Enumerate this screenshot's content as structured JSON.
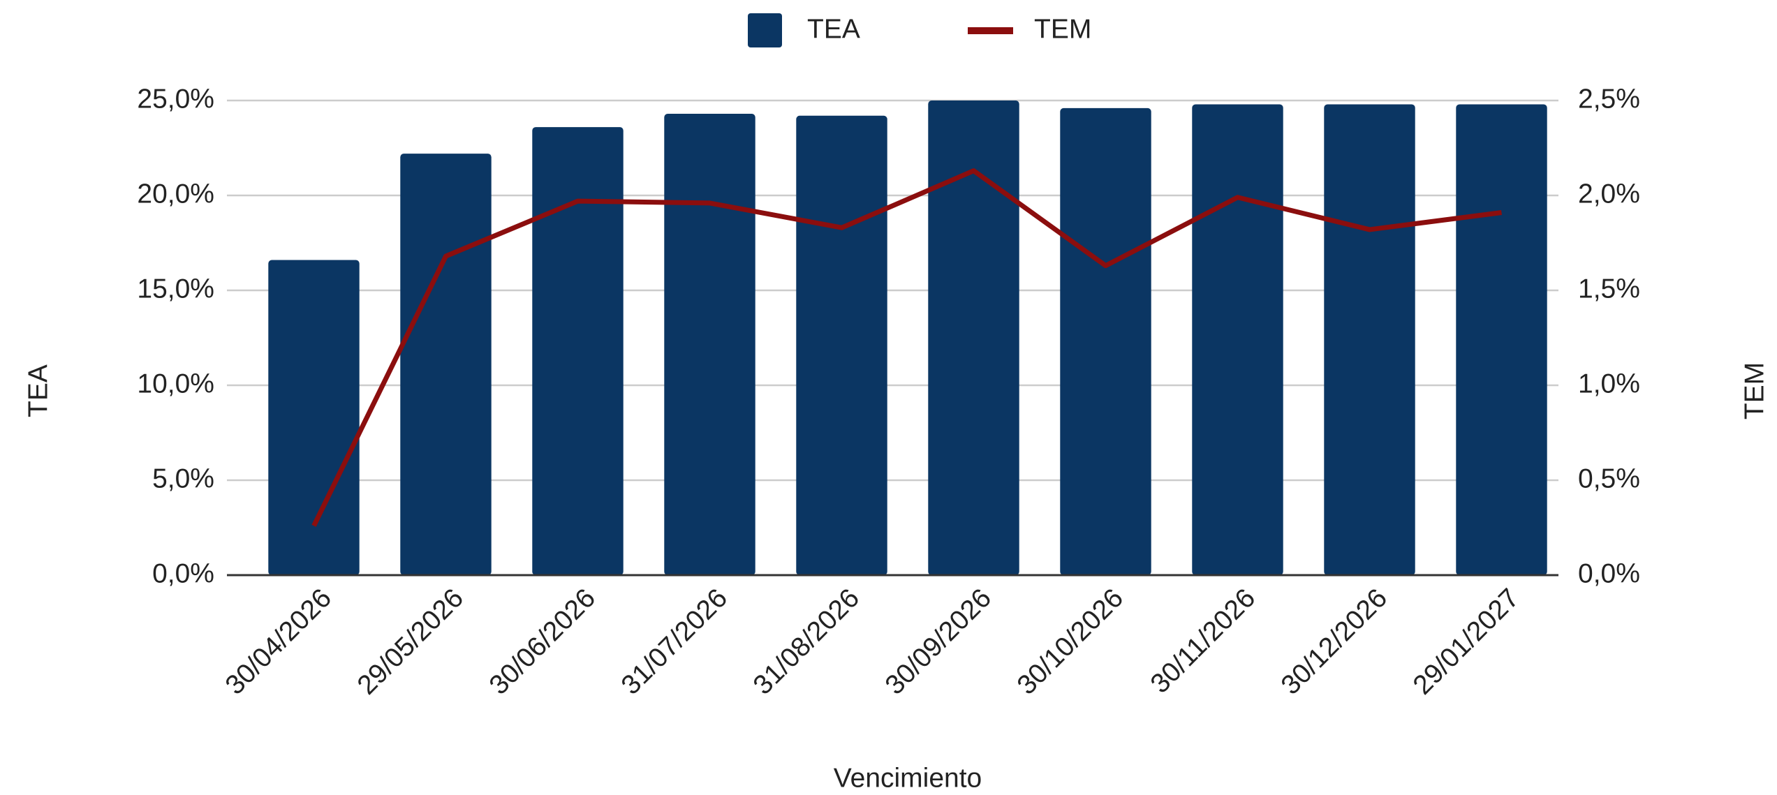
{
  "chart_data": {
    "type": "bar-line",
    "categories": [
      "30/04/2026",
      "29/05/2026",
      "30/06/2026",
      "31/07/2026",
      "31/08/2026",
      "30/09/2026",
      "30/10/2026",
      "30/11/2026",
      "30/12/2026",
      "29/01/2027"
    ],
    "series": [
      {
        "name": "TEA",
        "type": "bar",
        "color": "#0b3663",
        "values": [
          16.6,
          22.2,
          23.6,
          24.3,
          24.2,
          25.0,
          24.6,
          24.8,
          24.8,
          24.8
        ]
      },
      {
        "name": "TEM",
        "type": "line",
        "axis": "y2",
        "color": "#8b0e0e",
        "values": [
          0.26,
          1.68,
          1.97,
          1.96,
          1.83,
          2.13,
          1.63,
          1.99,
          1.82,
          1.91
        ]
      }
    ],
    "x_label": "Vencimiento",
    "y_label": "TEA",
    "y2_label": "TEM",
    "ylim": [
      0,
      25
    ],
    "yticks": [
      {
        "value": 0,
        "label": "0,0%"
      },
      {
        "value": 5,
        "label": "5,0%"
      },
      {
        "value": 10,
        "label": "10,0%"
      },
      {
        "value": 15,
        "label": "15,0%"
      },
      {
        "value": 20,
        "label": "20,0%"
      },
      {
        "value": 25,
        "label": "25,0%"
      }
    ],
    "y2lim": [
      0,
      2.5
    ],
    "y2ticks": [
      {
        "value": 0,
        "label": "0,0%"
      },
      {
        "value": 0.5,
        "label": "0,5%"
      },
      {
        "value": 1,
        "label": "1,0%"
      },
      {
        "value": 1.5,
        "label": "1,5%"
      },
      {
        "value": 2,
        "label": "2,0%"
      },
      {
        "value": 2.5,
        "label": "2,5%"
      }
    ],
    "grid": true,
    "legend": "top"
  }
}
